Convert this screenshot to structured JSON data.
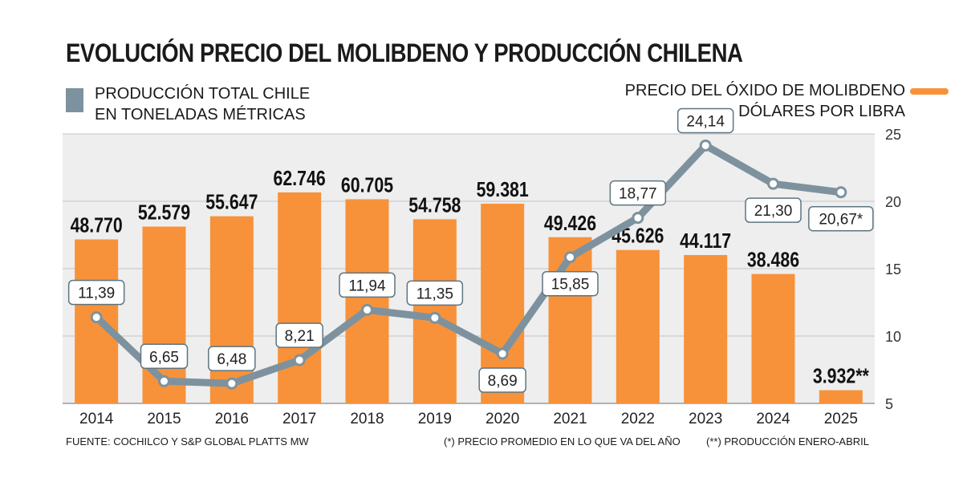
{
  "title": "EVOLUCIÓN PRECIO DEL MOLIBDENO Y PRODUCCIÓN CHILENA",
  "legend": {
    "left_line1": "PRODUCCIÓN TOTAL CHILE",
    "left_line2": "EN TONELADAS MÉTRICAS",
    "right_line1": "PRECIO DEL ÓXIDO DE MOLIBDENO",
    "right_line2": "DÓLARES POR LIBRA"
  },
  "footer": {
    "source": "FUENTE: COCHILCO Y S&P GLOBAL PLATTS MW",
    "note1": "(*) PRECIO PROMEDIO EN LO QUE VA DEL AÑO",
    "note2": "(**) PRODUCCIÓN ENERO-ABRIL"
  },
  "colors": {
    "bars": "#f7923a",
    "line": "#7d929e",
    "background_band": "#eeeeee"
  },
  "chart_data": {
    "type": "bar+line",
    "categories": [
      "2014",
      "2015",
      "2016",
      "2017",
      "2018",
      "2019",
      "2020",
      "2021",
      "2022",
      "2023",
      "2024",
      "2025"
    ],
    "series": [
      {
        "name": "PRODUCCIÓN TOTAL CHILE EN TONELADAS MÉTRICAS",
        "type": "bar",
        "values": [
          48770,
          52579,
          55647,
          62746,
          60705,
          54758,
          59381,
          49426,
          45626,
          44117,
          38486,
          3932
        ],
        "labels": [
          "48.770",
          "52.579",
          "55.647",
          "62.746",
          "60.705",
          "54.758",
          "59.381",
          "49.426",
          "45.626",
          "44.117",
          "38.486",
          "3.932**"
        ]
      },
      {
        "name": "PRECIO DEL ÓXIDO DE MOLIBDENO DÓLARES POR LIBRA",
        "type": "line",
        "axis": "right",
        "values": [
          11.39,
          6.65,
          6.48,
          8.21,
          11.94,
          11.35,
          8.69,
          15.85,
          18.77,
          24.14,
          21.3,
          20.67
        ],
        "labels": [
          "11,39",
          "6,65",
          "6,48",
          "8,21",
          "11,94",
          "11,35",
          "8,69",
          "15,85",
          "18,77",
          "24,14",
          "21,30",
          "20,67*"
        ],
        "label_position": [
          "above",
          "above",
          "above",
          "above",
          "above",
          "above",
          "below",
          "below",
          "above",
          "above",
          "below",
          "below"
        ]
      }
    ],
    "y_right": {
      "min": 5,
      "max": 25,
      "ticks": [
        5,
        10,
        15,
        20,
        25
      ]
    },
    "grid": "horizontal"
  }
}
